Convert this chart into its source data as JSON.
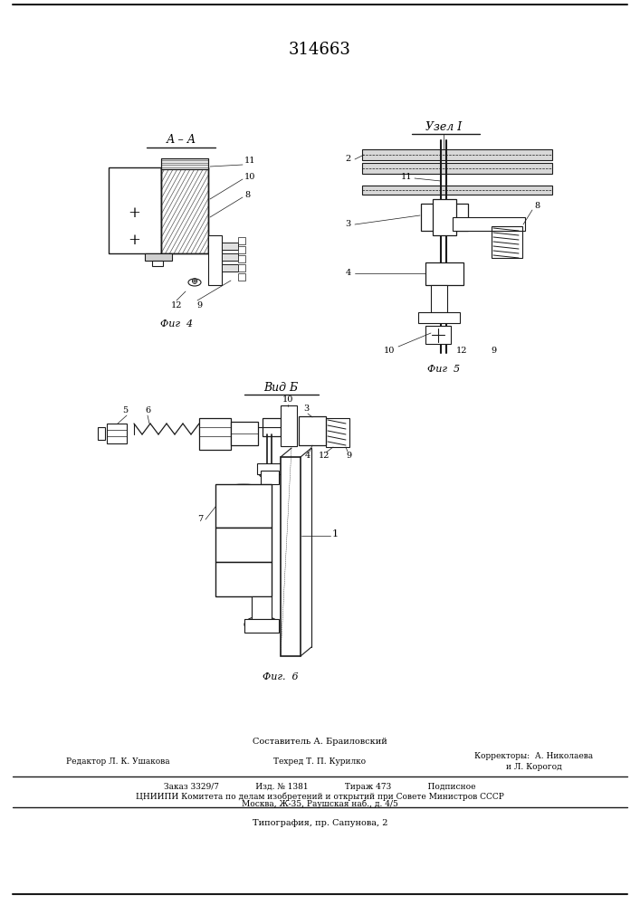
{
  "patent_number": "314663",
  "bg": "#ffffff",
  "lc": "#1a1a1a",
  "fig_width": 7.07,
  "fig_height": 10.0,
  "dpi": 100,
  "footer_line1": "Составитель А. Браиловский",
  "footer_line2_left": "Редактор Л. К. Ушакова",
  "footer_line2_mid": "Техред Т. П. Курилко",
  "footer_line2_right": "Корректоры:  А. Николаева",
  "footer_line3_right": "и Л. Корогод",
  "footer_box_line1": "Заказ 3329/7              Изд. № 1381              Тираж 473              Подписное",
  "footer_box_line2": "ЦНИИПИ Комитета по делам изобретений и открытий при Совете Министров СССР",
  "footer_box_line3": "Москва, Ж-35, Раушская наб., д. 4/5",
  "footer_last_line": "Типография, пр. Сапунова, 2"
}
